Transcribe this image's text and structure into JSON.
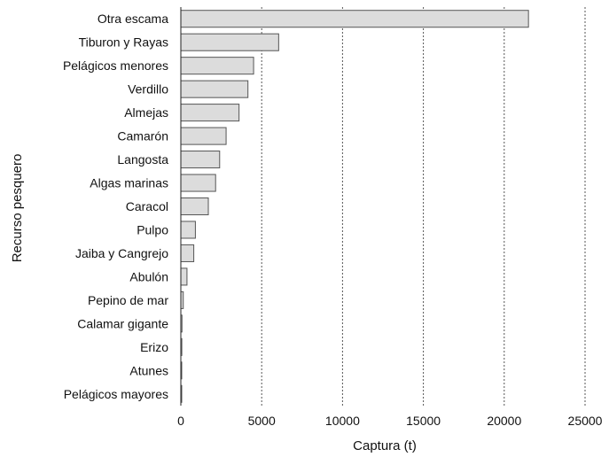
{
  "chart_data": {
    "type": "bar",
    "orientation": "horizontal",
    "title": "",
    "xlabel": "Captura (t)",
    "ylabel": "Recurso pesquero",
    "xlim": [
      0,
      25000
    ],
    "xticks": [
      0,
      5000,
      10000,
      15000,
      20000,
      25000
    ],
    "grid": true,
    "categories": [
      "Otra escama",
      "Tiburon y Rayas",
      "Pelágicos menores",
      "Verdillo",
      "Almejas",
      "Camarón",
      "Langosta",
      "Algas marinas",
      "Caracol",
      "Pulpo",
      "Jaiba y Cangrejo",
      "Abulón",
      "Pepino de mar",
      "Calamar gigante",
      "Erizo",
      "Atunes",
      "Pelágicos mayores"
    ],
    "values": [
      21500,
      6050,
      4500,
      4150,
      3600,
      2800,
      2400,
      2150,
      1700,
      900,
      800,
      380,
      150,
      70,
      60,
      50,
      40
    ],
    "colors": {
      "bar_fill": "#dcdcdc",
      "bar_stroke": "#555555"
    }
  }
}
